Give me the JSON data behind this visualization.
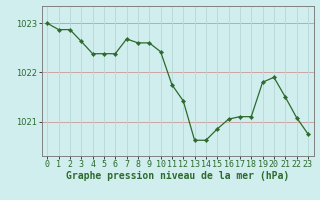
{
  "x": [
    0,
    1,
    2,
    3,
    4,
    5,
    6,
    7,
    8,
    9,
    10,
    11,
    12,
    13,
    14,
    15,
    16,
    17,
    18,
    19,
    20,
    21,
    22,
    23
  ],
  "y": [
    1023.0,
    1022.87,
    1022.87,
    1022.63,
    1022.38,
    1022.38,
    1022.38,
    1022.68,
    1022.6,
    1022.6,
    1022.42,
    1021.75,
    1021.42,
    1020.62,
    1020.62,
    1020.85,
    1021.05,
    1021.1,
    1021.1,
    1021.8,
    1021.9,
    1021.5,
    1021.08,
    1020.75
  ],
  "line_color": "#2d6a2d",
  "marker": "D",
  "marker_size": 2.2,
  "bg_color": "#d0eeee",
  "grid_color_major": "#aaaaaa",
  "grid_color_minor": "#c8e8e8",
  "xlabel": "Graphe pression niveau de la mer (hPa)",
  "xlabel_color": "#2d6a2d",
  "yticks": [
    1021,
    1022,
    1023
  ],
  "ylim": [
    1020.3,
    1023.35
  ],
  "xlim": [
    -0.5,
    23.5
  ],
  "tick_color": "#2d6a2d",
  "axis_color": "#808080",
  "tick_fontsize": 6.0,
  "xlabel_fontsize": 7.0
}
